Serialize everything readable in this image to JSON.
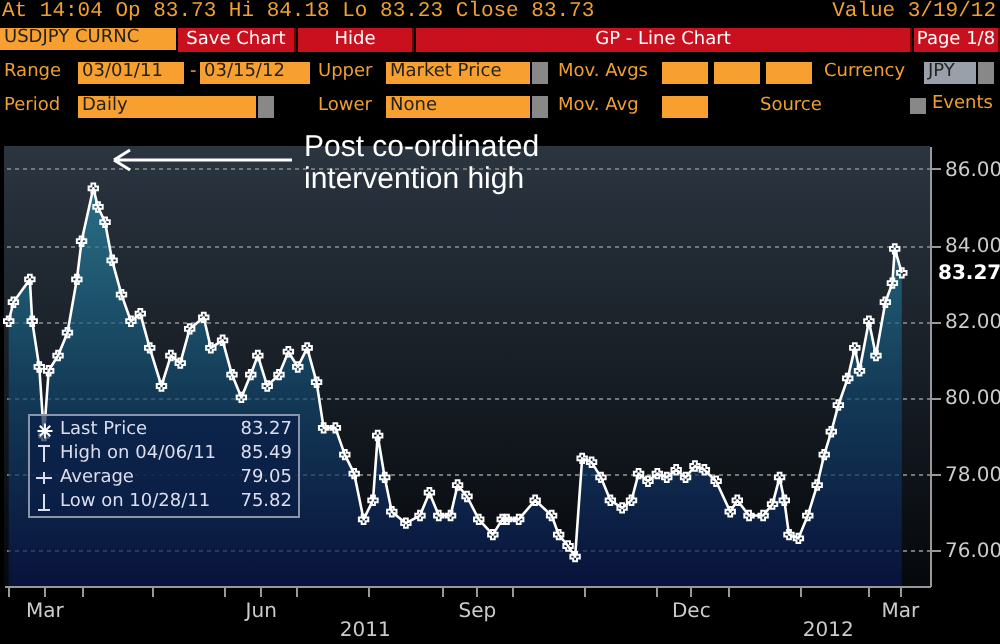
{
  "chart_data": {
    "type": "area",
    "title": "At 14:04 Op 83.73 Hi 84.18 Lo 83.23 Close 83.73",
    "subtitle": "Value 3/19/12",
    "x": [
      "2011-03-01",
      "2011-03-03",
      "2011-03-10",
      "2011-03-11",
      "2011-03-14",
      "2011-03-16",
      "2011-03-18",
      "2011-03-22",
      "2011-03-26",
      "2011-03-30",
      "2011-04-01",
      "2011-04-06",
      "2011-04-08",
      "2011-04-11",
      "2011-04-14",
      "2011-04-18",
      "2011-04-22",
      "2011-04-26",
      "2011-04-30",
      "2011-05-05",
      "2011-05-09",
      "2011-05-13",
      "2011-05-17",
      "2011-05-23",
      "2011-05-26",
      "2011-05-31",
      "2011-06-04",
      "2011-06-08",
      "2011-06-12",
      "2011-06-15",
      "2011-06-19",
      "2011-06-24",
      "2011-06-28",
      "2011-07-02",
      "2011-07-06",
      "2011-07-10",
      "2011-07-13",
      "2011-07-18",
      "2011-07-22",
      "2011-07-26",
      "2011-07-30",
      "2011-08-03",
      "2011-08-05",
      "2011-08-08",
      "2011-08-11",
      "2011-08-17",
      "2011-08-23",
      "2011-08-27",
      "2011-08-31",
      "2011-09-05",
      "2011-09-08",
      "2011-09-12",
      "2011-09-17",
      "2011-09-23",
      "2011-09-27",
      "2011-09-29",
      "2011-10-04",
      "2011-10-11",
      "2011-10-18",
      "2011-10-21",
      "2011-10-25",
      "2011-10-28",
      "2011-10-31",
      "2011-11-04",
      "2011-11-08",
      "2011-11-12",
      "2011-11-17",
      "2011-11-21",
      "2011-11-24",
      "2011-11-28",
      "2011-12-02",
      "2011-12-06",
      "2011-12-10",
      "2011-12-14",
      "2011-12-18",
      "2011-12-22",
      "2011-12-27",
      "2012-01-02",
      "2012-01-05",
      "2012-01-10",
      "2012-01-16",
      "2012-01-20",
      "2012-01-23",
      "2012-01-25",
      "2012-01-27",
      "2012-01-31",
      "2012-02-04",
      "2012-02-08",
      "2012-02-11",
      "2012-02-14",
      "2012-02-17",
      "2012-02-21",
      "2012-02-24",
      "2012-02-26",
      "2012-03-01",
      "2012-03-04",
      "2012-03-08",
      "2012-03-11",
      "2012-03-12",
      "2012-03-15"
    ],
    "series": [
      {
        "name": "Last Price",
        "color": "#ffffff",
        "values": [
          82.0,
          82.5,
          83.1,
          82.0,
          80.8,
          79.0,
          80.7,
          81.1,
          81.7,
          83.1,
          84.1,
          85.49,
          85.0,
          84.6,
          83.6,
          82.7,
          82.0,
          82.2,
          81.3,
          80.3,
          81.1,
          80.9,
          81.8,
          82.1,
          81.3,
          81.5,
          80.6,
          80.0,
          80.6,
          81.1,
          80.3,
          80.6,
          81.2,
          80.8,
          81.3,
          80.4,
          79.2,
          79.2,
          78.5,
          78.0,
          76.8,
          77.3,
          79.0,
          77.9,
          77.0,
          76.7,
          76.9,
          77.5,
          76.9,
          76.9,
          77.7,
          77.4,
          76.8,
          76.4,
          76.8,
          76.8,
          76.8,
          77.3,
          76.9,
          76.4,
          76.1,
          75.82,
          78.4,
          78.3,
          77.9,
          77.3,
          77.1,
          77.3,
          78.0,
          77.8,
          78.0,
          77.9,
          78.1,
          77.9,
          78.2,
          78.1,
          77.8,
          77.0,
          77.3,
          76.9,
          76.9,
          77.2,
          77.9,
          77.3,
          76.4,
          76.3,
          76.9,
          77.7,
          78.5,
          79.1,
          79.8,
          80.5,
          81.3,
          80.7,
          82.0,
          81.1,
          82.5,
          83.0,
          83.9,
          83.27
        ],
        "value_labels": [
          null,
          null,
          null,
          null,
          null,
          null,
          null,
          null,
          null,
          null,
          null,
          null,
          null,
          null,
          null,
          null,
          null,
          null,
          null,
          null,
          null,
          null,
          null,
          null,
          null,
          null,
          null,
          null,
          null,
          null,
          null,
          null,
          null,
          null,
          null,
          null,
          null,
          null,
          null,
          null,
          null,
          null,
          null,
          null,
          null,
          null,
          null,
          null,
          null,
          null,
          null,
          null,
          null,
          null,
          null,
          null,
          null,
          null,
          null,
          null,
          null,
          null,
          null,
          null,
          null,
          null,
          null,
          null,
          null,
          null,
          null,
          null,
          null,
          null,
          null,
          null,
          null,
          null,
          null,
          null,
          null,
          null,
          null,
          null,
          null,
          null,
          null,
          null,
          null,
          null,
          null,
          null,
          null,
          null,
          null,
          null,
          null,
          null,
          null,
          "83.27"
        ]
      }
    ],
    "xlim": [
      "2011-02-27",
      "2012-03-27"
    ],
    "xticks": [
      {
        "value": "2011-03-01",
        "label": null
      },
      {
        "value": "2011-03-16",
        "label": "Mar"
      },
      {
        "value": "2011-04-01",
        "label": null
      },
      {
        "value": "2011-05-01",
        "label": null
      },
      {
        "value": "2011-06-01",
        "label": null
      },
      {
        "value": "2011-06-16",
        "label": "Jun"
      },
      {
        "value": "2011-07-01",
        "label": null
      },
      {
        "value": "2011-08-01",
        "label": null
      },
      {
        "value": "2011-09-01",
        "label": null
      },
      {
        "value": "2011-09-16",
        "label": "Sep"
      },
      {
        "value": "2011-10-01",
        "label": null
      },
      {
        "value": "2011-11-01",
        "label": null
      },
      {
        "value": "2011-12-01",
        "label": null
      },
      {
        "value": "2011-12-16",
        "label": "Dec"
      },
      {
        "value": "2012-01-01",
        "label": null
      },
      {
        "value": "2012-02-01",
        "label": null
      },
      {
        "value": "2012-03-01",
        "label": null
      },
      {
        "value": "2012-03-14",
        "label": "Mar"
      }
    ],
    "ylim": [
      75.05,
      86.6
    ],
    "yticks": [
      {
        "value": 76,
        "label": "76.00"
      },
      {
        "value": 78,
        "label": "78.00"
      },
      {
        "value": 80,
        "label": "80.00"
      },
      {
        "value": 82,
        "label": "82.00"
      },
      {
        "value": 84,
        "label": "84.00"
      },
      {
        "value": 86,
        "label": "86.00"
      }
    ],
    "grid": "y",
    "marker": "cross",
    "legend": "bottom left",
    "annotations": [
      "Post co-ordinated intervention high",
      "2011",
      "2012",
      "High on 04/06/11 85.49",
      "Average 79.05",
      "Low on 10/28/11 75.82",
      "USDJPY CURNC",
      "Save Chart",
      "Hide",
      "GP - Line Chart",
      "Page 1/8",
      "Range",
      "03/01/11",
      "-",
      "03/15/12",
      "Upper",
      "Market Price",
      "Mov. Avgs",
      "Currency",
      "JPY",
      "Period",
      "Daily",
      "Lower",
      "None",
      "Mov. Avg",
      "Source",
      "Events"
    ]
  }
}
